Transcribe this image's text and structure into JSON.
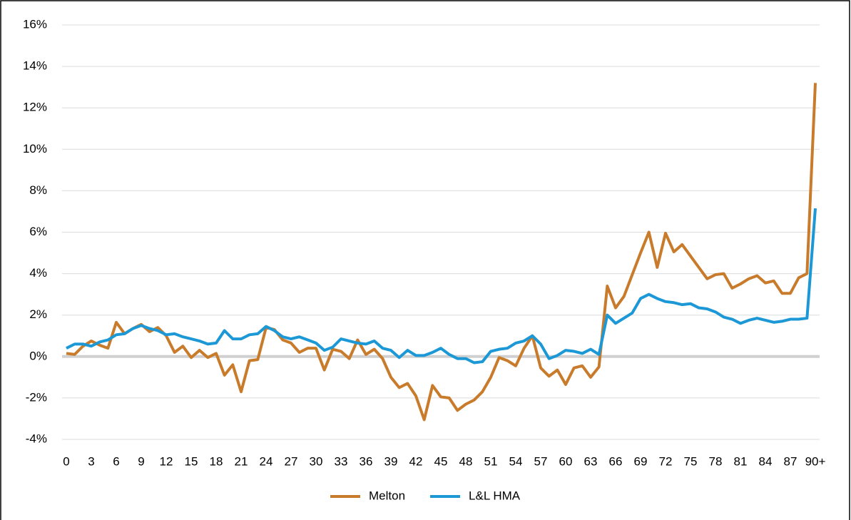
{
  "chart_data": {
    "type": "line",
    "categories": [
      "0",
      null,
      null,
      "3",
      null,
      null,
      "6",
      null,
      null,
      "9",
      null,
      null,
      "12",
      null,
      null,
      "15",
      null,
      null,
      "18",
      null,
      null,
      "21",
      null,
      null,
      "24",
      null,
      null,
      "27",
      null,
      null,
      "30",
      null,
      null,
      "33",
      null,
      null,
      "36",
      null,
      null,
      "39",
      null,
      null,
      "42",
      null,
      null,
      "45",
      null,
      null,
      "48",
      null,
      null,
      "51",
      null,
      null,
      "54",
      null,
      null,
      "57",
      null,
      null,
      "60",
      null,
      null,
      "63",
      null,
      null,
      "66",
      null,
      null,
      "69",
      null,
      null,
      "72",
      null,
      null,
      "75",
      null,
      null,
      "78",
      null,
      null,
      "81",
      null,
      null,
      "84",
      null,
      null,
      "87",
      null,
      null,
      "90+"
    ],
    "series": [
      {
        "name": "Melton",
        "color": "#c97b2c",
        "values": [
          0.15,
          0.1,
          0.5,
          0.75,
          0.55,
          0.4,
          1.65,
          1.1,
          1.35,
          1.55,
          1.2,
          1.4,
          1.0,
          0.2,
          0.5,
          -0.05,
          0.3,
          -0.05,
          0.15,
          -0.9,
          -0.4,
          -1.7,
          -0.2,
          -0.15,
          1.4,
          1.3,
          0.8,
          0.65,
          0.2,
          0.4,
          0.4,
          -0.65,
          0.35,
          0.25,
          -0.1,
          0.8,
          0.1,
          0.35,
          -0.1,
          -1.0,
          -1.5,
          -1.3,
          -1.9,
          -3.05,
          -1.4,
          -1.95,
          -2.0,
          -2.6,
          -2.3,
          -2.1,
          -1.7,
          -1.0,
          -0.05,
          -0.2,
          -0.45,
          0.4,
          1.0,
          -0.55,
          -0.95,
          -0.65,
          -1.35,
          -0.55,
          -0.45,
          -1.0,
          -0.5,
          3.4,
          2.35,
          2.9,
          3.95,
          5.0,
          6.0,
          4.3,
          5.95,
          5.05,
          5.4,
          4.85,
          4.3,
          3.75,
          3.95,
          4.0,
          3.3,
          3.5,
          3.75,
          3.9,
          3.55,
          3.65,
          3.05,
          3.05,
          3.8,
          4.0,
          13.2
        ]
      },
      {
        "name": "L&L HMA",
        "color": "#1b98d5",
        "values": [
          0.4,
          0.6,
          0.6,
          0.5,
          0.7,
          0.8,
          1.05,
          1.1,
          1.35,
          1.5,
          1.35,
          1.25,
          1.05,
          1.1,
          0.95,
          0.85,
          0.75,
          0.6,
          0.65,
          1.25,
          0.85,
          0.85,
          1.05,
          1.1,
          1.45,
          1.25,
          0.95,
          0.85,
          0.95,
          0.8,
          0.65,
          0.3,
          0.45,
          0.85,
          0.75,
          0.65,
          0.6,
          0.75,
          0.4,
          0.3,
          -0.05,
          0.3,
          0.05,
          0.05,
          0.2,
          0.4,
          0.1,
          -0.1,
          -0.1,
          -0.3,
          -0.25,
          0.25,
          0.35,
          0.4,
          0.65,
          0.75,
          1.0,
          0.6,
          -0.1,
          0.05,
          0.3,
          0.25,
          0.15,
          0.35,
          0.1,
          2.0,
          1.6,
          1.85,
          2.1,
          2.8,
          3.0,
          2.8,
          2.65,
          2.6,
          2.5,
          2.55,
          2.35,
          2.3,
          2.15,
          1.9,
          1.8,
          1.6,
          1.75,
          1.85,
          1.75,
          1.65,
          1.7,
          1.8,
          1.8,
          1.85,
          7.15
        ]
      }
    ],
    "ylim": [
      -4,
      16
    ],
    "yticks": [
      {
        "value": -4,
        "label": "-4%"
      },
      {
        "value": -2,
        "label": "-2%"
      },
      {
        "value": 0,
        "label": "0%"
      },
      {
        "value": 2,
        "label": "2%"
      },
      {
        "value": 4,
        "label": "4%"
      },
      {
        "value": 6,
        "label": "6%"
      },
      {
        "value": 8,
        "label": "8%"
      },
      {
        "value": 10,
        "label": "10%"
      },
      {
        "value": 12,
        "label": "12%"
      },
      {
        "value": 14,
        "label": "14%"
      },
      {
        "value": 16,
        "label": "16%"
      }
    ],
    "grid": true,
    "legend": "bottom"
  }
}
